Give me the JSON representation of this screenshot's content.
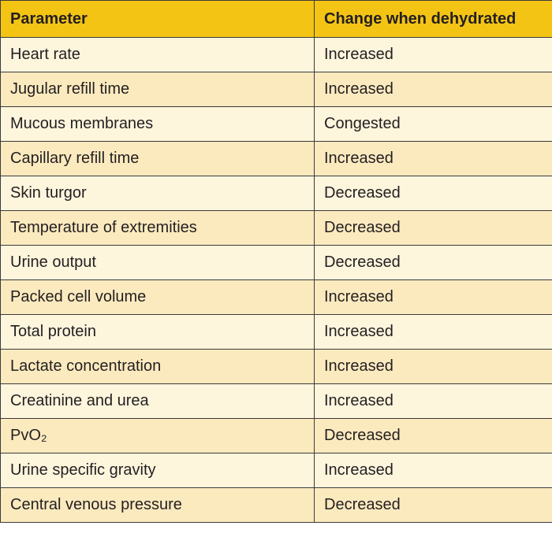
{
  "table": {
    "header": [
      "Parameter",
      "Change when dehydrated"
    ],
    "rows": [
      [
        "Heart rate",
        "Increased"
      ],
      [
        "Jugular refill time",
        "Increased"
      ],
      [
        "Mucous membranes",
        "Congested"
      ],
      [
        "Capillary refill time",
        "Increased"
      ],
      [
        "Skin turgor",
        "Decreased"
      ],
      [
        "Temperature of extremities",
        "Decreased"
      ],
      [
        "Urine output",
        "Decreased"
      ],
      [
        "Packed cell volume",
        "Increased"
      ],
      [
        "Total protein",
        "Increased"
      ],
      [
        "Lactate concentration",
        "Increased"
      ],
      [
        "Creatinine and urea",
        "Increased"
      ],
      [
        "PvO₂",
        "Decreased"
      ],
      [
        "Urine specific gravity",
        "Increased"
      ],
      [
        "Central venous pressure",
        "Decreased"
      ]
    ]
  }
}
